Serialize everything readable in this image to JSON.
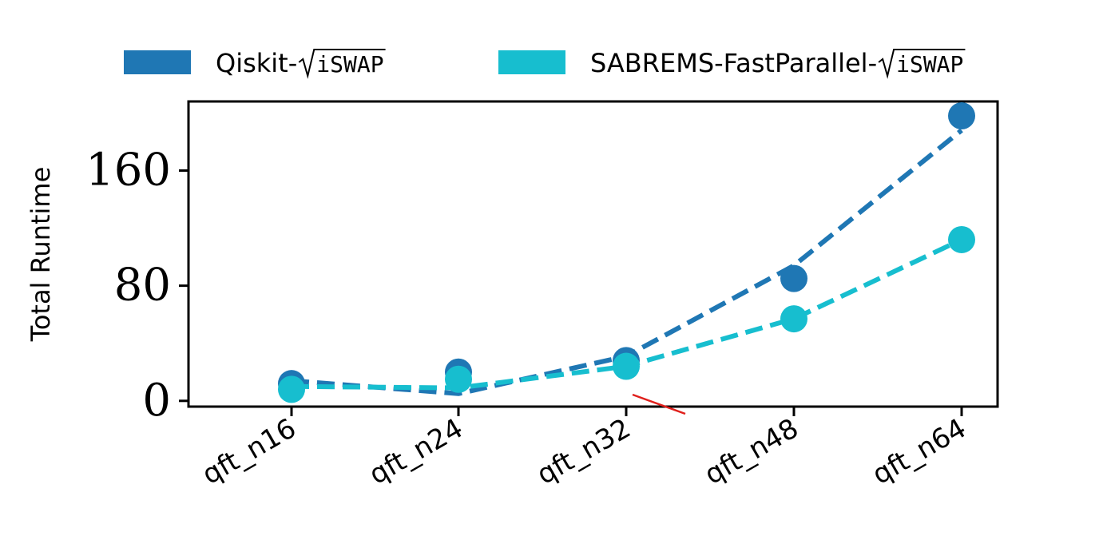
{
  "chart_data": {
    "type": "line",
    "ylabel": "Total Runtime",
    "xlabel": "",
    "categories": [
      "qft_n16",
      "qft_n24",
      "qft_n32",
      "qft_n48",
      "qft_n64"
    ],
    "ylim": [
      -4,
      208
    ],
    "yticks": [
      "0",
      "80",
      "160"
    ],
    "ytick_values": [
      0,
      80,
      160
    ],
    "grid": false,
    "legend_position": "top",
    "series": [
      {
        "name": "Qiskit-√iSWAP",
        "name_prefix": "Qiskit-",
        "name_sqrt_arg": "iSWAP",
        "color": "#1f77b4",
        "points": [
          12,
          20,
          28,
          85,
          198
        ],
        "line": [
          14,
          5,
          31,
          94,
          188
        ]
      },
      {
        "name": "SABREMS-FastParallel-√iSWAP",
        "name_prefix": "SABREMS-FastParallel-",
        "name_sqrt_arg": "iSWAP",
        "color": "#17becf",
        "points": [
          8,
          15,
          24,
          57,
          112
        ],
        "line": [
          10,
          9,
          24,
          57,
          112
        ]
      }
    ]
  }
}
